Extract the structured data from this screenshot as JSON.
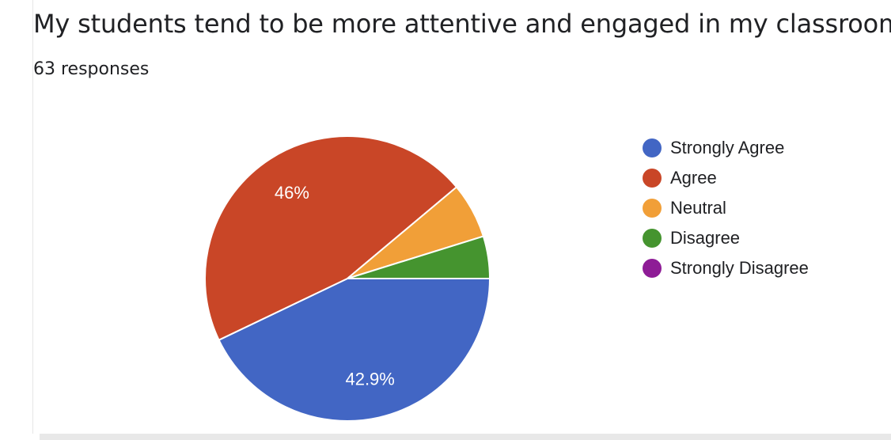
{
  "header": {
    "title": "My students tend to be more attentive and engaged in my classroom.",
    "responses": "63 responses"
  },
  "chart_data": {
    "type": "pie",
    "categories": [
      "Strongly Agree",
      "Agree",
      "Neutral",
      "Disagree",
      "Strongly Disagree"
    ],
    "values": [
      42.9,
      46.0,
      6.3,
      4.8,
      0.0
    ],
    "slice_labels": [
      "42.9%",
      "46%",
      "",
      "",
      ""
    ],
    "colors": [
      "#4266c4",
      "#c94627",
      "#f19f38",
      "#45942f",
      "#8e1c96"
    ],
    "legend_position": "right"
  }
}
